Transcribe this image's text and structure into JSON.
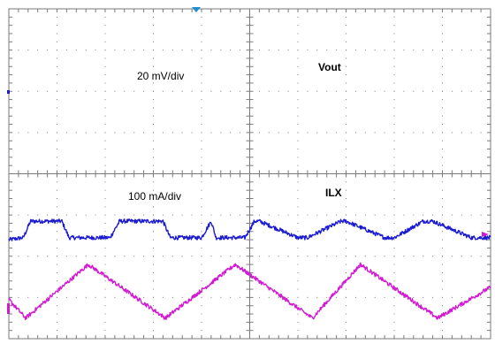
{
  "chart_data": {
    "type": "line",
    "display": {
      "grid": true,
      "grid_divisions_x": 10,
      "grid_divisions_y": 8,
      "background": "#ffffff",
      "grid_color": "#7a7a7a"
    },
    "traces": [
      {
        "name": "Vout",
        "color": "#1a1ad0",
        "scale_label": "20 mV/div",
        "unit": "div",
        "x_divisions": [
          0,
          0.3,
          0.45,
          1.1,
          1.25,
          2.1,
          2.3,
          3.2,
          3.35,
          4.0,
          4.2,
          4.3,
          4.9,
          5.1,
          5.2,
          6.0,
          6.2,
          6.9,
          7.0,
          7.8,
          8.0,
          8.6,
          8.8,
          9.6,
          9.8,
          10.0
        ],
        "y_divisions": [
          2.4,
          2.45,
          2.85,
          2.85,
          2.45,
          2.45,
          2.85,
          2.85,
          2.45,
          2.45,
          2.85,
          2.45,
          2.45,
          2.85,
          2.85,
          2.45,
          2.45,
          2.85,
          2.85,
          2.45,
          2.45,
          2.85,
          2.85,
          2.45,
          2.45,
          2.45
        ],
        "noise_divisions": 0.05
      },
      {
        "name": "ILX",
        "color": "#d21ad2",
        "scale_label": "100 mA/div",
        "unit": "div",
        "x_divisions": [
          0,
          0.35,
          1.65,
          3.25,
          4.7,
          6.3,
          7.3,
          8.9,
          10.0
        ],
        "y_divisions": [
          0.95,
          0.5,
          1.8,
          0.5,
          1.8,
          0.5,
          1.8,
          0.5,
          1.25
        ],
        "noise_divisions": 0.05
      }
    ],
    "markers": {
      "trigger_arrow_color": "#1a8fd6",
      "ch2_arrow_color": "#d21ad2",
      "ch1_marker_color": "#1a1ad0"
    }
  }
}
